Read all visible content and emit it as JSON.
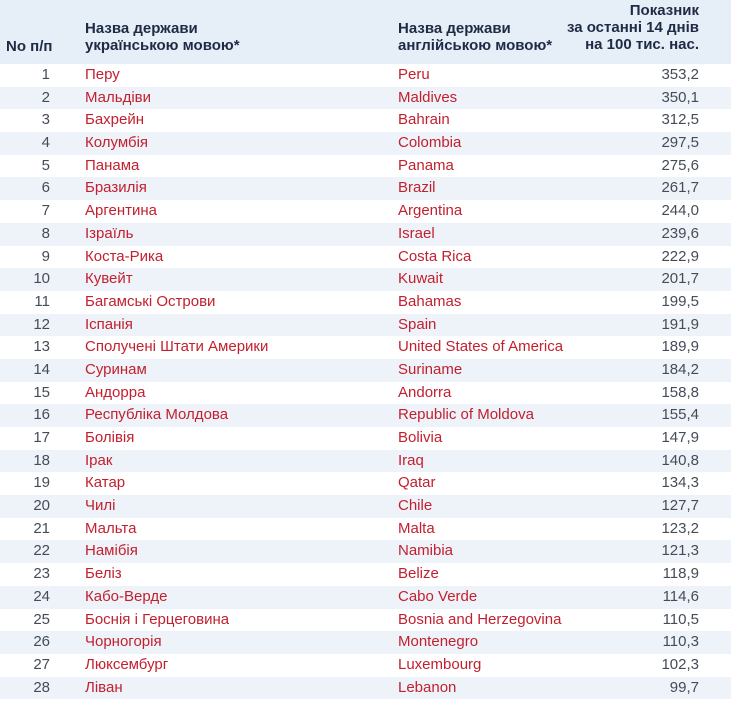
{
  "header": {
    "num": "No п/п",
    "ua_line1": "Назва держави",
    "ua_line2": "українською мовою*",
    "en_line1": "Назва держави",
    "en_line2": "англійською мовою*",
    "val_line1": "Показник",
    "val_line2": "за останні 14 днів",
    "val_line3": "на 100 тис. нас."
  },
  "rows": [
    {
      "num": "1",
      "ua": "Перу",
      "en": "Peru",
      "value": "353,2"
    },
    {
      "num": "2",
      "ua": "Мальдіви",
      "en": "Maldives",
      "value": "350,1"
    },
    {
      "num": "3",
      "ua": "Бахрейн",
      "en": "Bahrain",
      "value": "312,5"
    },
    {
      "num": "4",
      "ua": "Колумбія",
      "en": "Colombia",
      "value": "297,5"
    },
    {
      "num": "5",
      "ua": "Панама",
      "en": "Panama",
      "value": "275,6"
    },
    {
      "num": "6",
      "ua": "Бразилія",
      "en": "Brazil",
      "value": "261,7"
    },
    {
      "num": "7",
      "ua": "Аргентина",
      "en": "Argentina",
      "value": "244,0"
    },
    {
      "num": "8",
      "ua": "Ізраїль",
      "en": "Israel",
      "value": "239,6"
    },
    {
      "num": "9",
      "ua": "Коста-Рика",
      "en": "Costa Rica",
      "value": "222,9"
    },
    {
      "num": "10",
      "ua": "Кувейт",
      "en": "Kuwait",
      "value": "201,7"
    },
    {
      "num": "11",
      "ua": "Багамські Острови",
      "en": "Bahamas",
      "value": "199,5"
    },
    {
      "num": "12",
      "ua": "Іспанія",
      "en": "Spain",
      "value": "191,9"
    },
    {
      "num": "13",
      "ua": "Сполучені Штати Америки",
      "en": "United States of America",
      "value": "189,9"
    },
    {
      "num": "14",
      "ua": "Суринам",
      "en": "Suriname",
      "value": "184,2"
    },
    {
      "num": "15",
      "ua": "Андорра",
      "en": "Andorra",
      "value": "158,8"
    },
    {
      "num": "16",
      "ua": "Республіка Молдова",
      "en": "Republic of Moldova",
      "value": "155,4"
    },
    {
      "num": "17",
      "ua": "Болівія",
      "en": "Bolivia",
      "value": "147,9"
    },
    {
      "num": "18",
      "ua": "Ірак",
      "en": "Iraq",
      "value": "140,8"
    },
    {
      "num": "19",
      "ua": "Катар",
      "en": "Qatar",
      "value": "134,3"
    },
    {
      "num": "20",
      "ua": "Чилі",
      "en": "Chile",
      "value": "127,7"
    },
    {
      "num": "21",
      "ua": "Мальта",
      "en": "Malta",
      "value": "123,2"
    },
    {
      "num": "22",
      "ua": "Намібія",
      "en": "Namibia",
      "value": "121,3"
    },
    {
      "num": "23",
      "ua": "Беліз",
      "en": "Belize",
      "value": "118,9"
    },
    {
      "num": "24",
      "ua": "Кабо-Верде",
      "en": "Cabo Verde",
      "value": "114,6"
    },
    {
      "num": "25",
      "ua": "Боснія і Герцеговина",
      "en": "Bosnia and Herzegovina",
      "value": "110,5"
    },
    {
      "num": "26",
      "ua": "Чорногорія",
      "en": "Montenegro",
      "value": "110,3"
    },
    {
      "num": "27",
      "ua": "Люксембург",
      "en": "Luxembourg",
      "value": "102,3"
    },
    {
      "num": "28",
      "ua": "Ліван",
      "en": "Lebanon",
      "value": "99,7"
    }
  ]
}
